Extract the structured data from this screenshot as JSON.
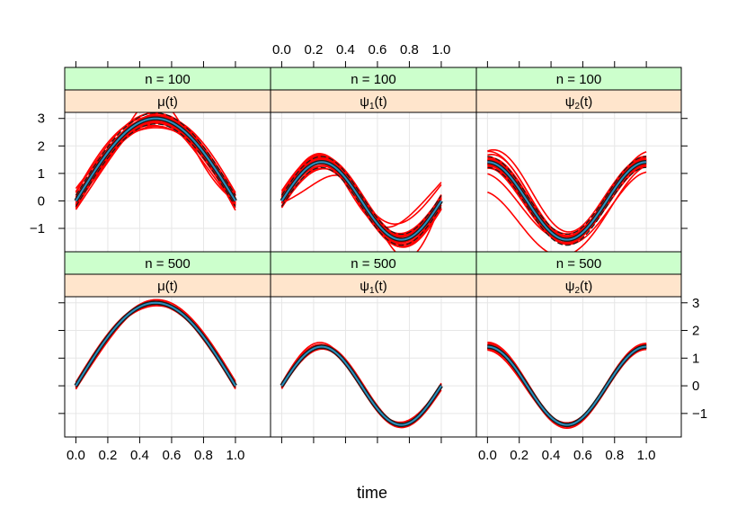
{
  "chart_data": {
    "type": "line",
    "xlabel": "time",
    "ylabel": "",
    "xlim": [
      -0.07,
      1.22
    ],
    "ylim": [
      -1.85,
      3.22
    ],
    "x_ticks": [
      0.0,
      0.2,
      0.4,
      0.6,
      0.8,
      1.0
    ],
    "x_tick_labels": [
      "0.0",
      "0.2",
      "0.4",
      "0.6",
      "0.8",
      "1.0"
    ],
    "y_ticks": [
      -1,
      0,
      1,
      2,
      3
    ],
    "y_tick_labels": [
      "−1",
      "0",
      "1",
      "2",
      "3"
    ],
    "grid": true,
    "layout": "trellis 3 columns x 2 rows",
    "colors": {
      "strip_top": "#ccffcc",
      "strip_bottom": "#ffe5cc",
      "replicates": "#ff0000",
      "truth": "#1a1a1a",
      "truth_inner": "#2a8fbd",
      "grid": "#e6e6e6"
    },
    "panels": [
      {
        "row": 0,
        "col": 0,
        "n_label": "n = 100",
        "func": "μ",
        "func_sub": "",
        "func_suffix": "(t)",
        "series": [
          {
            "values_desc": "mu(t) = 3 sin(pi t), replicate estimates in red around true curve",
            "x": [
              0.0,
              0.1,
              0.2,
              0.3,
              0.4,
              0.5,
              0.6,
              0.7,
              0.8,
              0.9,
              1.0
            ],
            "y": [
              0.0,
              0.93,
              1.76,
              2.43,
              2.85,
              3.0,
              2.85,
              2.43,
              1.76,
              0.93,
              0.0
            ]
          }
        ]
      },
      {
        "row": 0,
        "col": 1,
        "n_label": "n = 100",
        "func": "ψ",
        "func_sub": "1",
        "func_suffix": "(t)",
        "series": [
          {
            "values_desc": "psi1(t) = sqrt(2) sin(2 pi t)",
            "x": [
              0.0,
              0.1,
              0.2,
              0.3,
              0.4,
              0.5,
              0.6,
              0.7,
              0.8,
              0.9,
              1.0
            ],
            "y": [
              0.0,
              0.83,
              1.34,
              1.34,
              0.83,
              0.0,
              -0.83,
              -1.34,
              -1.34,
              -0.83,
              0.0
            ]
          }
        ]
      },
      {
        "row": 0,
        "col": 2,
        "n_label": "n = 100",
        "func": "ψ",
        "func_sub": "2",
        "func_suffix": "(t)",
        "series": [
          {
            "values_desc": "psi2(t) = sqrt(2) cos(2 pi t)",
            "x": [
              0.0,
              0.1,
              0.2,
              0.3,
              0.4,
              0.5,
              0.6,
              0.7,
              0.8,
              0.9,
              1.0
            ],
            "y": [
              1.41,
              1.14,
              0.44,
              -0.44,
              -1.14,
              -1.41,
              -1.14,
              -0.44,
              0.44,
              1.14,
              1.41
            ]
          }
        ]
      },
      {
        "row": 1,
        "col": 0,
        "n_label": "n = 500",
        "func": "μ",
        "func_sub": "",
        "func_suffix": "(t)",
        "series": [
          {
            "values_desc": "mu(t) = 3 sin(pi t)",
            "x": [
              0.0,
              0.1,
              0.2,
              0.3,
              0.4,
              0.5,
              0.6,
              0.7,
              0.8,
              0.9,
              1.0
            ],
            "y": [
              0.0,
              0.93,
              1.76,
              2.43,
              2.85,
              3.0,
              2.85,
              2.43,
              1.76,
              0.93,
              0.0
            ]
          }
        ]
      },
      {
        "row": 1,
        "col": 1,
        "n_label": "n = 500",
        "func": "ψ",
        "func_sub": "1",
        "func_suffix": "(t)",
        "series": [
          {
            "values_desc": "psi1(t) = sqrt(2) sin(2 pi t)",
            "x": [
              0.0,
              0.1,
              0.2,
              0.3,
              0.4,
              0.5,
              0.6,
              0.7,
              0.8,
              0.9,
              1.0
            ],
            "y": [
              0.0,
              0.83,
              1.34,
              1.34,
              0.83,
              0.0,
              -0.83,
              -1.34,
              -1.34,
              -0.83,
              0.0
            ]
          }
        ]
      },
      {
        "row": 1,
        "col": 2,
        "n_label": "n = 500",
        "func": "ψ",
        "func_sub": "2",
        "func_suffix": "(t)",
        "series": [
          {
            "values_desc": "psi2(t) = sqrt(2) cos(2 pi t)",
            "x": [
              0.0,
              0.1,
              0.2,
              0.3,
              0.4,
              0.5,
              0.6,
              0.7,
              0.8,
              0.9,
              1.0
            ],
            "y": [
              1.41,
              1.14,
              0.44,
              -0.44,
              -1.14,
              -1.41,
              -1.14,
              -0.44,
              0.44,
              1.14,
              1.41
            ]
          }
        ]
      }
    ]
  }
}
